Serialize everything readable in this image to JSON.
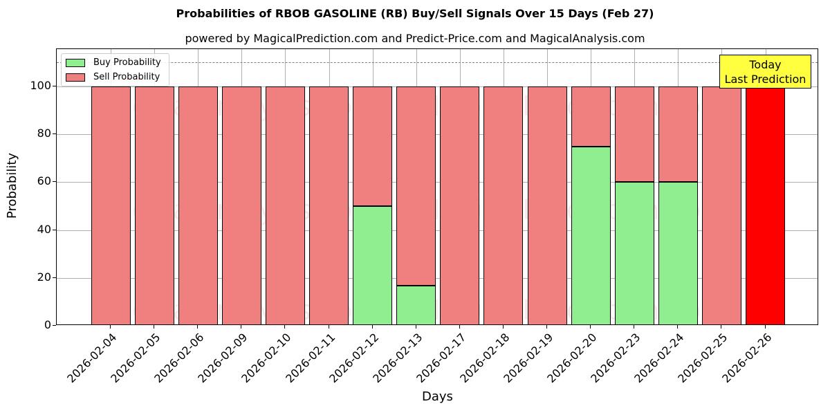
{
  "chart_data": {
    "type": "bar",
    "stacked": true,
    "title": "Probabilities of RBOB GASOLINE (RB) Buy/Sell Signals Over 15 Days (Feb 27)",
    "subtitle": "powered by MagicalPrediction.com and Predict-Price.com and MagicalAnalysis.com",
    "xlabel": "Days",
    "ylabel": "Probability",
    "ylim": [
      0,
      115
    ],
    "yticks": [
      0,
      20,
      40,
      60,
      80,
      100
    ],
    "grid": true,
    "legend_position": "upper left",
    "categories": [
      "2026-02-04",
      "2026-02-05",
      "2026-02-06",
      "2026-02-09",
      "2026-02-10",
      "2026-02-11",
      "2026-02-12",
      "2026-02-13",
      "2026-02-17",
      "2026-02-18",
      "2026-02-19",
      "2026-02-20",
      "2026-02-23",
      "2026-02-24",
      "2026-02-25",
      "2026-02-26"
    ],
    "series": [
      {
        "name": "Buy Probability",
        "color": "#90ee90",
        "values": [
          0,
          0,
          0,
          0,
          0,
          0,
          50,
          16.7,
          0,
          0,
          0,
          75,
          60,
          60,
          0,
          0
        ]
      },
      {
        "name": "Sell Probability",
        "color": "#f08080",
        "values": [
          100,
          100,
          100,
          100,
          100,
          100,
          50,
          83.3,
          100,
          100,
          100,
          25,
          40,
          40,
          100,
          100
        ]
      }
    ],
    "highlight": {
      "index": 15,
      "color": "#ff0000"
    },
    "reference_line": {
      "y": 110,
      "style": "dashed",
      "color": "#808080"
    },
    "annotation": {
      "text_line1": "Today",
      "text_line2": "Last Prediction",
      "background": "#ffff40"
    },
    "watermarks": [
      "MagicalAnalysis.com",
      "MagicalPrediction.com"
    ]
  }
}
